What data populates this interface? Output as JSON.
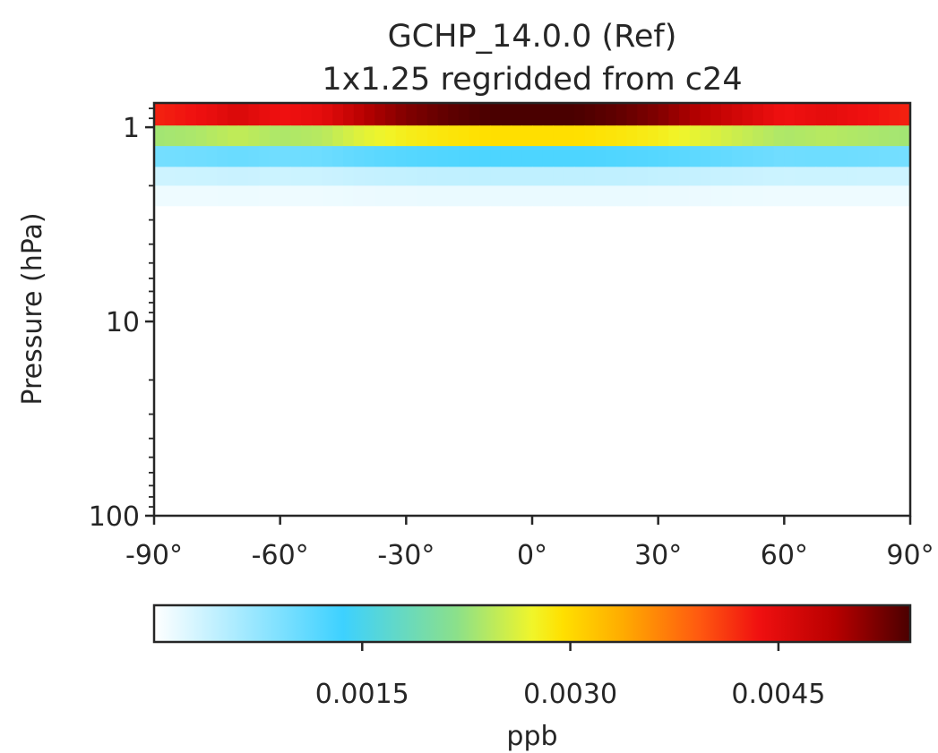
{
  "chart_data": {
    "type": "heatmap",
    "title_lines": [
      "GCHP_14.0.0 (Ref)",
      "1x1.25 regridded from c24"
    ],
    "xlabel": "",
    "ylabel": "Pressure (hPa)",
    "yscale": "log",
    "yaxis_inverted": true,
    "xlim": [
      -90,
      90
    ],
    "ylim": [
      100,
      0.75
    ],
    "x_ticks": [
      -90,
      -60,
      -30,
      0,
      30,
      60,
      90
    ],
    "x_tick_labels": [
      "-90°",
      "-60°",
      "-30°",
      "0°",
      "30°",
      "60°",
      "90°"
    ],
    "y_ticks": [
      1,
      10,
      100
    ],
    "y_tick_labels": [
      "1",
      "10",
      "100"
    ],
    "x_profile": {
      "lat": [
        -90,
        -80,
        -70,
        -60,
        -50,
        -40,
        -30,
        -20,
        -10,
        0,
        10,
        20,
        30,
        40,
        50,
        60,
        70,
        80,
        90
      ],
      "weight": [
        0.78,
        0.8,
        0.84,
        0.8,
        0.82,
        0.9,
        0.95,
        0.98,
        1.0,
        1.0,
        1.0,
        0.98,
        0.95,
        0.9,
        0.85,
        0.8,
        0.82,
        0.8,
        0.78
      ]
    },
    "levels": [
      {
        "p_top": 0.75,
        "p_bottom": 0.98,
        "peak": 0.00545
      },
      {
        "p_top": 0.98,
        "p_bottom": 1.25,
        "peak": 0.00295
      },
      {
        "p_top": 1.25,
        "p_bottom": 1.6,
        "peak": 0.00125
      },
      {
        "p_top": 1.6,
        "p_bottom": 2.0,
        "peak": 0.00045
      },
      {
        "p_top": 2.0,
        "p_bottom": 2.55,
        "peak": 0.00015
      },
      {
        "p_top": 2.55,
        "p_bottom": 100,
        "peak": 0.0
      }
    ],
    "colorbar": {
      "vmin": 0,
      "vmax": 0.00545,
      "label": "ppb",
      "ticks": [
        0.0015,
        0.003,
        0.0045
      ],
      "tick_labels": [
        "0.0015",
        "0.0030",
        "0.0045"
      ],
      "colormap_name": "WhGrYlRd",
      "colormap_stops": [
        {
          "pos": 0.0,
          "color": "#ffffff"
        },
        {
          "pos": 0.25,
          "color": "#3dd1ff"
        },
        {
          "pos": 0.4,
          "color": "#8be08a"
        },
        {
          "pos": 0.5,
          "color": "#f0f52a"
        },
        {
          "pos": 0.54,
          "color": "#ffe000"
        },
        {
          "pos": 0.62,
          "color": "#ffab00"
        },
        {
          "pos": 0.72,
          "color": "#ff5a10"
        },
        {
          "pos": 0.8,
          "color": "#f01010"
        },
        {
          "pos": 0.9,
          "color": "#b80000"
        },
        {
          "pos": 1.0,
          "color": "#4a0000"
        }
      ]
    }
  }
}
